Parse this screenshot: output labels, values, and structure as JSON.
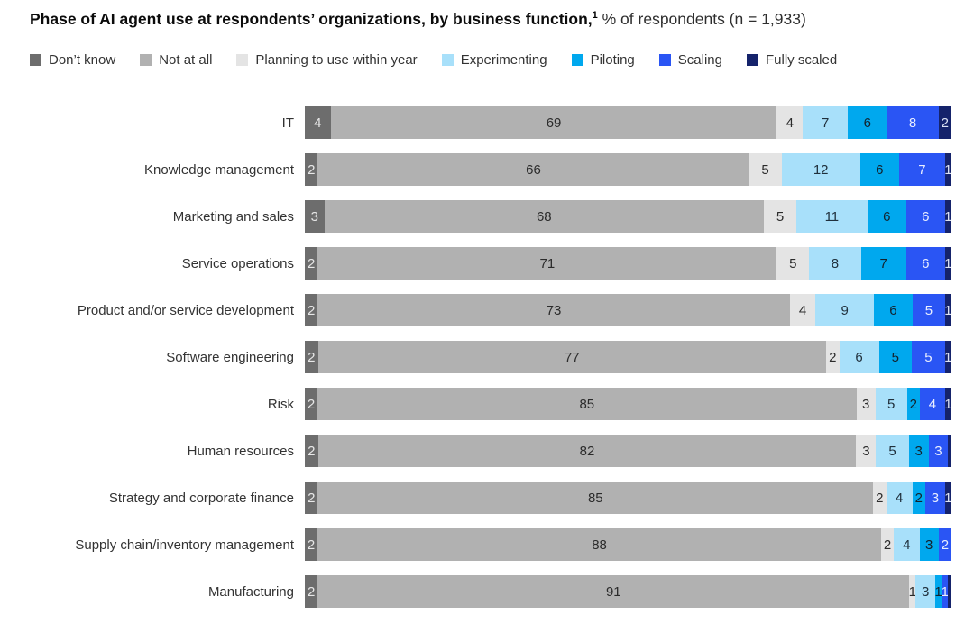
{
  "title": {
    "bold": "Phase of AI agent use at respondents’ organizations, by business function,",
    "footnote_marker": "1",
    "normal": " % of respondents (n = 1,933)"
  },
  "legend": [
    {
      "label": "Don’t know",
      "color": "#6d6d6d",
      "text_color": "#e8e8e8"
    },
    {
      "label": "Not at all",
      "color": "#b1b1b1",
      "text_color": "#2b2b2b"
    },
    {
      "label": "Planning to use within year",
      "color": "#e4e4e4",
      "text_color": "#2b2b2b"
    },
    {
      "label": "Experimenting",
      "color": "#a8e0fa",
      "text_color": "#20303c"
    },
    {
      "label": "Piloting",
      "color": "#00a8ee",
      "text_color": "#13222c"
    },
    {
      "label": "Scaling",
      "color": "#2a55f4",
      "text_color": "#e9eeff"
    },
    {
      "label": "Fully scaled",
      "color": "#15236b",
      "text_color": "#dde3f5"
    }
  ],
  "chart_data": {
    "type": "bar",
    "variant": "horizontal-stacked",
    "unit": "% of respondents",
    "n": "1,933",
    "title": "Phase of AI agent use at respondents’ organizations, by business function, % of respondents (n = 1,933)",
    "legend_position": "top",
    "grid": false,
    "note": "segment values below 1 are rendered as unlabeled slivers (0.5); 0 means no segment visible",
    "categories": [
      "IT",
      "Knowledge management",
      "Marketing and sales",
      "Service operations",
      "Product and/or service development",
      "Software engineering",
      "Risk",
      "Human resources",
      "Strategy and corporate finance",
      "Supply chain/inventory management",
      "Manufacturing"
    ],
    "series": [
      {
        "name": "Don’t know",
        "values": [
          4,
          2,
          3,
          2,
          2,
          2,
          2,
          2,
          2,
          2,
          2
        ]
      },
      {
        "name": "Not at all",
        "values": [
          69,
          66,
          68,
          71,
          73,
          77,
          85,
          82,
          85,
          88,
          91
        ]
      },
      {
        "name": "Planning to use within year",
        "values": [
          4,
          5,
          5,
          5,
          4,
          2,
          3,
          3,
          2,
          2,
          1
        ]
      },
      {
        "name": "Experimenting",
        "values": [
          7,
          12,
          11,
          8,
          9,
          6,
          5,
          5,
          4,
          4,
          3
        ]
      },
      {
        "name": "Piloting",
        "values": [
          6,
          6,
          6,
          7,
          6,
          5,
          2,
          3,
          2,
          3,
          1
        ]
      },
      {
        "name": "Scaling",
        "values": [
          8,
          7,
          6,
          6,
          5,
          5,
          4,
          3,
          3,
          2,
          1
        ]
      },
      {
        "name": "Fully scaled",
        "values": [
          2,
          1,
          1,
          1,
          1,
          1,
          1,
          0.5,
          1,
          0,
          0.5
        ]
      }
    ]
  }
}
